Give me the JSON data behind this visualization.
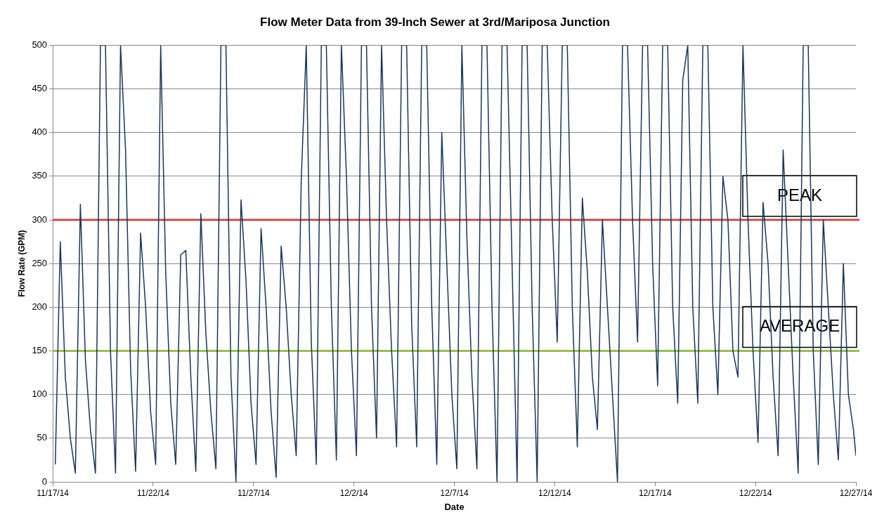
{
  "chart_data": {
    "type": "line",
    "title": "Flow Meter Data from 39-Inch Sewer at 3rd/Mariposa Junction",
    "xlabel": "Date",
    "ylabel": "Flow Rate (GPM)",
    "x": [
      "--11-17T03:00",
      "--11-17T09:00",
      "--11-17T15:00",
      "--11-17T21:00",
      "--11-18T03:00",
      "--11-18T09:00",
      "--11-18T15:00",
      "--11-18T21:00",
      "--11-19T03:00",
      "--11-19T09:00",
      "--11-19T15:00",
      "--11-19T21:00",
      "--11-20T03:00",
      "--11-20T09:00",
      "--11-20T15:00",
      "--11-20T21:00",
      "--11-21T03:00",
      "--11-21T09:00",
      "--11-21T15:00",
      "--11-21T21:00",
      "--11-22T03:00",
      "--11-22T09:00",
      "--11-22T15:00",
      "--11-22T21:00",
      "--11-23T03:00",
      "--11-23T09:00",
      "--11-23T15:00",
      "--11-23T21:00",
      "--11-24T03:00",
      "--11-24T09:00",
      "--11-24T15:00",
      "--11-24T21:00",
      "--11-25T03:00",
      "--11-25T09:00",
      "--11-25T15:00",
      "--11-25T21:00",
      "--11-26T03:00",
      "--11-26T09:00",
      "--11-26T15:00",
      "--11-26T21:00",
      "--11-27T03:00",
      "--11-27T09:00",
      "--11-27T15:00",
      "--11-27T21:00",
      "--11-28T03:00",
      "--11-28T09:00",
      "--11-28T15:00",
      "--11-28T21:00",
      "--11-29T03:00",
      "--11-29T09:00",
      "--11-29T15:00",
      "--11-29T21:00",
      "--11-30T03:00",
      "--11-30T09:00",
      "--11-30T15:00",
      "--11-30T21:00",
      "--12-01T03:00",
      "--12-01T09:00",
      "--12-01T15:00",
      "--12-01T21:00",
      "--12-02T03:00",
      "--12-02T09:00",
      "--12-02T15:00",
      "--12-02T21:00",
      "--12-03T03:00",
      "--12-03T09:00",
      "--12-03T15:00",
      "--12-03T21:00",
      "--12-04T03:00",
      "--12-04T09:00",
      "--12-04T15:00",
      "--12-04T21:00",
      "--12-05T03:00",
      "--12-05T09:00",
      "--12-05T15:00",
      "--12-05T21:00",
      "--12-06T03:00",
      "--12-06T09:00",
      "--12-06T15:00",
      "--12-06T21:00",
      "--12-07T03:00",
      "--12-07T09:00",
      "--12-07T15:00",
      "--12-07T21:00",
      "--12-08T03:00",
      "--12-08T09:00",
      "--12-08T15:00",
      "--12-08T21:00",
      "--12-09T03:00",
      "--12-09T09:00",
      "--12-09T15:00",
      "--12-09T21:00",
      "--12-10T03:00",
      "--12-10T09:00",
      "--12-10T15:00",
      "--12-10T21:00",
      "--12-11T03:00",
      "--12-11T09:00",
      "--12-11T15:00",
      "--12-11T21:00",
      "--12-12T03:00",
      "--12-12T09:00",
      "--12-12T15:00",
      "--12-12T21:00",
      "--12-13T03:00",
      "--12-13T09:00",
      "--12-13T15:00",
      "--12-13T21:00",
      "--12-14T03:00",
      "--12-14T09:00",
      "--12-14T15:00",
      "--12-14T21:00",
      "--12-15T03:00",
      "--12-15T09:00",
      "--12-15T15:00",
      "--12-15T21:00",
      "--12-16T03:00",
      "--12-16T09:00",
      "--12-16T15:00",
      "--12-16T21:00",
      "--12-17T03:00",
      "--12-17T09:00",
      "--12-17T15:00",
      "--12-17T21:00",
      "--12-18T03:00",
      "--12-18T09:00",
      "--12-18T15:00",
      "--12-18T21:00",
      "--12-19T03:00",
      "--12-19T09:00",
      "--12-19T15:00",
      "--12-19T21:00",
      "--12-20T03:00",
      "--12-20T09:00",
      "--12-20T15:00",
      "--12-20T21:00",
      "--12-21T03:00",
      "--12-21T09:00",
      "--12-21T15:00",
      "--12-21T21:00",
      "--12-22T03:00",
      "--12-22T09:00",
      "--12-22T15:00",
      "--12-22T21:00",
      "--12-23T03:00",
      "--12-23T09:00",
      "--12-23T15:00",
      "--12-23T21:00",
      "--12-24T03:00",
      "--12-24T09:00",
      "--12-24T15:00",
      "--12-24T21:00",
      "--12-25T03:00",
      "--12-25T09:00",
      "--12-25T15:00",
      "--12-25T21:00",
      "--12-26T03:00",
      "--12-26T09:00",
      "--12-26T15:00",
      "--12-26T21:00",
      "--12-27T00:00"
    ],
    "series": [
      {
        "color": "#17375e",
        "values": [
          20,
          275,
          120,
          50,
          10,
          318,
          140,
          60,
          10,
          500,
          500,
          150,
          10,
          500,
          380,
          130,
          12,
          285,
          200,
          80,
          20,
          500,
          240,
          90,
          20,
          260,
          265,
          120,
          12,
          307,
          170,
          80,
          15,
          500,
          500,
          120,
          0,
          323,
          230,
          90,
          20,
          290,
          200,
          80,
          5,
          270,
          200,
          100,
          30,
          345,
          500,
          160,
          20,
          500,
          500,
          200,
          25,
          500,
          350,
          150,
          30,
          500,
          500,
          200,
          50,
          500,
          300,
          150,
          40,
          500,
          500,
          180,
          40,
          500,
          500,
          200,
          20,
          400,
          250,
          100,
          15,
          500,
          280,
          120,
          15,
          500,
          500,
          200,
          0,
          500,
          500,
          250,
          0,
          500,
          500,
          200,
          0,
          500,
          500,
          300,
          160,
          500,
          500,
          200,
          40,
          325,
          240,
          120,
          60,
          300,
          200,
          100,
          0,
          500,
          500,
          300,
          160,
          500,
          500,
          250,
          110,
          500,
          500,
          200,
          90,
          460,
          500,
          200,
          90,
          500,
          500,
          200,
          100,
          350,
          300,
          150,
          120,
          500,
          300,
          150,
          45,
          320,
          250,
          120,
          30,
          380,
          250,
          120,
          10,
          500,
          500,
          150,
          20,
          300,
          200,
          100,
          25,
          250,
          100,
          60,
          30
        ]
      }
    ],
    "xlim": [
      "--11-17",
      "--12-27"
    ],
    "xticks": [
      {
        "value": "--11-17",
        "label": "11/17/14"
      },
      {
        "value": "--11-22",
        "label": "11/22/14"
      },
      {
        "value": "--11-27",
        "label": "11/27/14"
      },
      {
        "value": "--12-02",
        "label": "12/2/14"
      },
      {
        "value": "--12-07",
        "label": "12/7/14"
      },
      {
        "value": "--12-12",
        "label": "12/12/14"
      },
      {
        "value": "--12-17",
        "label": "12/17/14"
      },
      {
        "value": "--12-22",
        "label": "12/22/14"
      },
      {
        "value": "--12-27",
        "label": "12/27/14"
      }
    ],
    "ylim": [
      0,
      500
    ],
    "yticks": [
      0,
      50,
      100,
      150,
      200,
      250,
      300,
      350,
      400,
      450,
      500
    ],
    "ref_lines": [
      {
        "axis": "y",
        "value": 300,
        "label": "PEAK",
        "color": "#c0504d"
      },
      {
        "axis": "y",
        "value": 150,
        "label": "AVERAGE",
        "color": "#9bbb59"
      }
    ],
    "grid": "y",
    "legend": false,
    "marker": "none",
    "line_style": "solid"
  }
}
